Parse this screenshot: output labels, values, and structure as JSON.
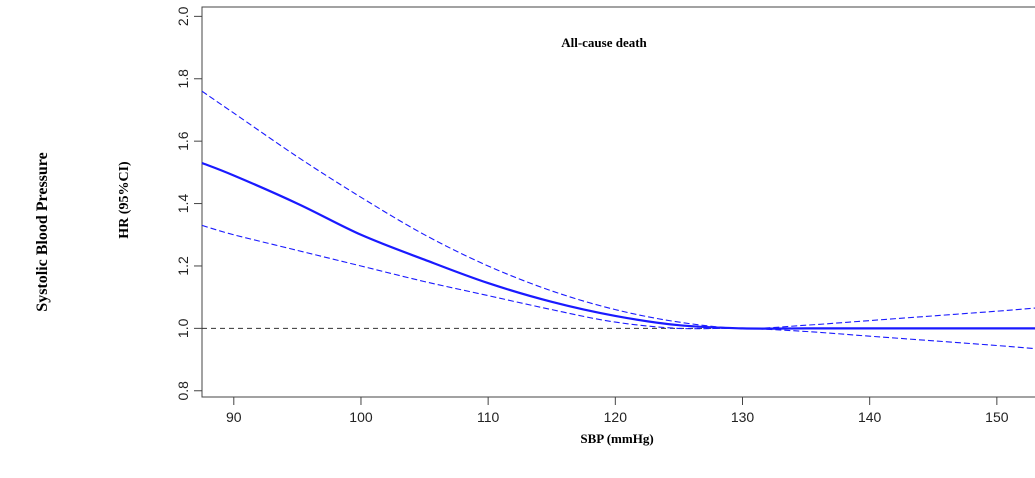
{
  "chart_data": {
    "type": "line",
    "title": "All-cause death",
    "side_label": "Systolic Blood Pressure",
    "xlabel": "SBP (mmHg)",
    "ylabel": "HR (95%CI)",
    "xlim": [
      87.5,
      153
    ],
    "ylim": [
      0.78,
      2.03
    ],
    "x_ticks": [
      90,
      100,
      110,
      120,
      130,
      140,
      150
    ],
    "y_ticks": [
      0.8,
      1.0,
      1.2,
      1.4,
      1.6,
      1.8,
      2.0
    ],
    "y_tick_labels": [
      "0.8",
      "1.0",
      "1.2",
      "1.4",
      "1.6",
      "1.8",
      "2.0"
    ],
    "reference_line": 1.0,
    "grid": false,
    "line_color": "#1a1aff",
    "x": [
      87.5,
      90,
      95,
      100,
      105,
      110,
      115,
      120,
      125,
      130,
      135,
      140,
      145,
      150,
      153
    ],
    "series": [
      {
        "role": "estimate",
        "values": [
          1.53,
          1.49,
          1.4,
          1.3,
          1.22,
          1.145,
          1.085,
          1.04,
          1.01,
          1.0,
          1.0,
          1.0,
          1.0,
          1.0,
          1.0
        ]
      },
      {
        "role": "upper",
        "values": [
          1.76,
          1.69,
          1.55,
          1.42,
          1.3,
          1.2,
          1.12,
          1.06,
          1.02,
          1.0,
          1.01,
          1.025,
          1.04,
          1.055,
          1.065
        ]
      },
      {
        "role": "lower",
        "values": [
          1.33,
          1.3,
          1.25,
          1.2,
          1.15,
          1.105,
          1.06,
          1.02,
          1.0,
          1.0,
          0.99,
          0.975,
          0.96,
          0.945,
          0.935
        ]
      }
    ]
  }
}
